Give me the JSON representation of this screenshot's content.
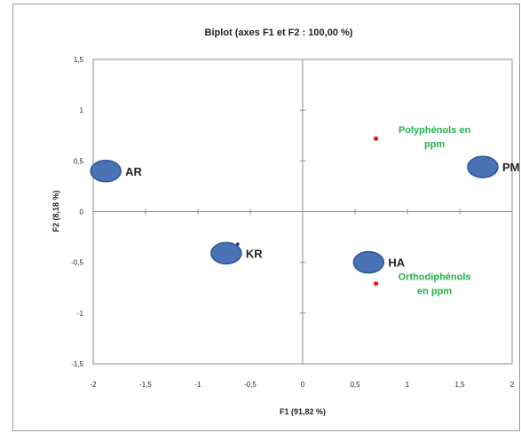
{
  "chart_data": {
    "type": "scatter",
    "title": "Biplot (axes F1 et F2 : 100,00 %)",
    "xlabel": "F1 (91,82 %)",
    "ylabel": "F2 (8,18 %)",
    "xlim": [
      -2,
      2
    ],
    "ylim": [
      -1.5,
      1.5
    ],
    "x_ticks": [
      "-2",
      "-1,5",
      "-1",
      "-0,5",
      "0",
      "0,5",
      "1",
      "1,5",
      "2"
    ],
    "y_ticks": [
      "1,5",
      "1",
      "0,5",
      "0",
      "-0,5",
      "-1",
      "-1,5"
    ],
    "observations": [
      {
        "label": "AR",
        "x": -1.88,
        "y": 0.4
      },
      {
        "label": "KR",
        "x": -0.73,
        "y": -0.41
      },
      {
        "label": "HA",
        "x": 0.63,
        "y": -0.5
      },
      {
        "label": "PM",
        "x": 1.72,
        "y": 0.44
      }
    ],
    "variables": [
      {
        "label_lines": [
          "Polyphénols en",
          "ppm"
        ],
        "x": 0.7,
        "y": 0.72
      },
      {
        "label_lines": [
          "Orthodiphénols",
          "en  ppm"
        ],
        "x": 0.7,
        "y": -0.71
      }
    ],
    "colors": {
      "observation": "#4a73b5",
      "variable": "#e8141c",
      "variable_label": "#22b14c"
    }
  }
}
